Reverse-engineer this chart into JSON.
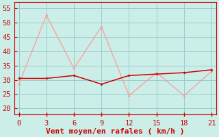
{
  "x": [
    0,
    3,
    6,
    9,
    12,
    15,
    18,
    21
  ],
  "line1_y": [
    30.5,
    30.5,
    31.5,
    28.5,
    31.5,
    32,
    32.5,
    33.5
  ],
  "line2_y": [
    28.5,
    52.5,
    34,
    48.5,
    24.5,
    32.5,
    24.5,
    33
  ],
  "line1_color": "#cc0000",
  "line2_color": "#ff9999",
  "bg_color": "#cceee8",
  "grid_color": "#99cccc",
  "xlabel": "Vent moyen/en rafales ( km/h )",
  "xlabel_color": "#cc0000",
  "tick_color": "#cc0000",
  "spine_color": "#cc0000",
  "ylim": [
    18,
    57
  ],
  "xlim": [
    -0.5,
    21.5
  ],
  "yticks": [
    20,
    25,
    30,
    35,
    40,
    45,
    50,
    55
  ],
  "xticks": [
    0,
    3,
    6,
    9,
    12,
    15,
    18,
    21
  ],
  "xlabel_fontsize": 8,
  "tick_fontsize": 7.5
}
